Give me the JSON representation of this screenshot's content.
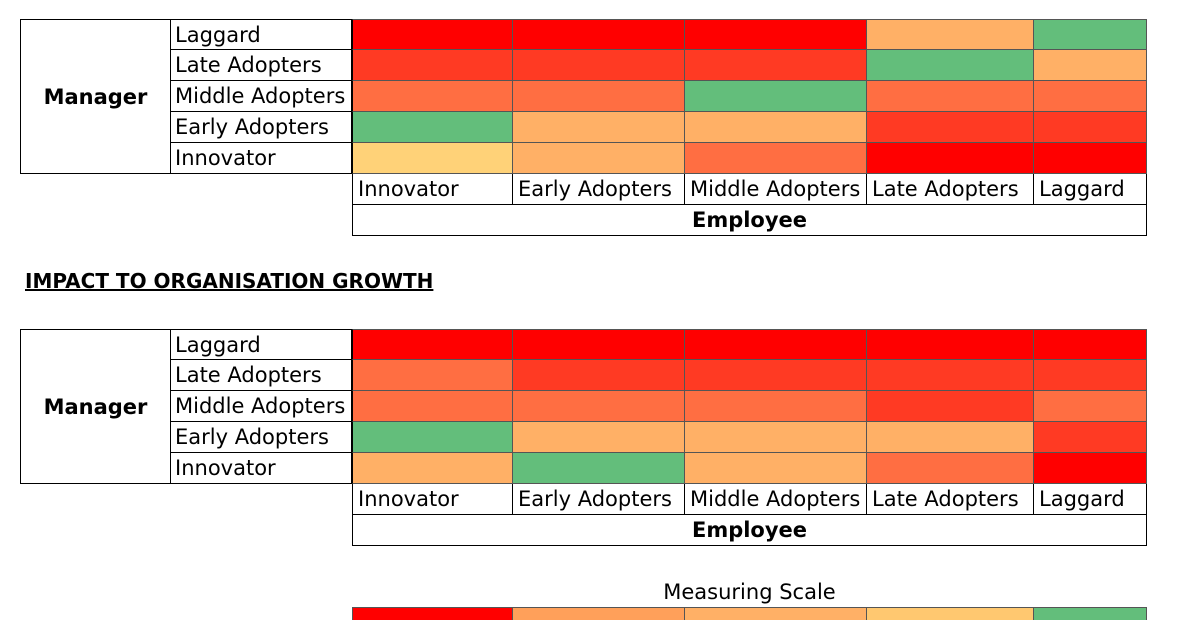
{
  "chart_data": [
    {
      "type": "heatmap",
      "title": "",
      "ylabel": "Manager",
      "xlabel": "Employee",
      "y_categories": [
        "Laggard",
        "Late Adopters",
        "Middle Adopters",
        "Early Adopters",
        "Innovator"
      ],
      "x_categories": [
        "Innovator",
        "Early Adopters",
        "Middle Adopters",
        "Late Adopters",
        "Laggard"
      ],
      "values": [
        [
          "#ff0000",
          "#ff0000",
          "#ff0000",
          "#ffb066",
          "#63be7b"
        ],
        [
          "#ff3a23",
          "#ff3a23",
          "#ff3a23",
          "#63be7b",
          "#ffb066"
        ],
        [
          "#ff6e42",
          "#ff6e42",
          "#63be7b",
          "#ff6e42",
          "#ff6e42"
        ],
        [
          "#63be7b",
          "#ffb066",
          "#ffb066",
          "#ff3a23",
          "#ff3a23"
        ],
        [
          "#ffd278",
          "#ffb066",
          "#ff6e42",
          "#ff0000",
          "#ff0000"
        ]
      ]
    },
    {
      "type": "heatmap",
      "title": "IMPACT TO ORGANISATION GROWTH",
      "ylabel": "Manager",
      "xlabel": "Employee",
      "y_categories": [
        "Laggard",
        "Late Adopters",
        "Middle Adopters",
        "Early Adopters",
        "Innovator"
      ],
      "x_categories": [
        "Innovator",
        "Early Adopters",
        "Middle Adopters",
        "Late Adopters",
        "Laggard"
      ],
      "values": [
        [
          "#ff0000",
          "#ff0000",
          "#ff0000",
          "#ff0000",
          "#ff0000"
        ],
        [
          "#ff6e42",
          "#ff3a23",
          "#ff3a23",
          "#ff3a23",
          "#ff3a23"
        ],
        [
          "#ff6e42",
          "#ff6e42",
          "#ff6e42",
          "#ff3a23",
          "#ff6e42"
        ],
        [
          "#63be7b",
          "#ffb066",
          "#ffb066",
          "#ffb066",
          "#ff3a23"
        ],
        [
          "#ffb066",
          "#63be7b",
          "#ffb066",
          "#ff6e42",
          "#ff0000"
        ]
      ]
    }
  ],
  "measuring_scale": {
    "title": "Measuring Scale",
    "colors": [
      "#ff0000",
      "#ffa05a",
      "#ffb066",
      "#ffc870",
      "#63be7b"
    ]
  }
}
